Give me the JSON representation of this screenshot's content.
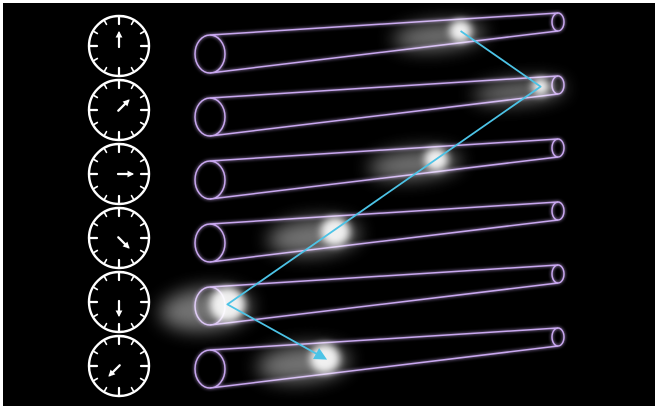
{
  "diagram": {
    "rows": [
      {
        "clock_angle_deg": 0,
        "blob_position": 0.72
      },
      {
        "clock_angle_deg": 45,
        "blob_position": 0.95
      },
      {
        "clock_angle_deg": 90,
        "blob_position": 0.65
      },
      {
        "clock_angle_deg": 135,
        "blob_position": 0.36
      },
      {
        "clock_angle_deg": 180,
        "blob_position": 0.05
      },
      {
        "clock_angle_deg": 225,
        "blob_position": 0.33
      }
    ],
    "path_points": [
      {
        "row": 0,
        "position": 0.72
      },
      {
        "row": 1,
        "position": 0.95
      },
      {
        "row": 4,
        "position": 0.05
      },
      {
        "row": 5,
        "position": 0.33
      }
    ],
    "colors": {
      "background": "#000000",
      "clock": "#ffffff",
      "tube": "#c9a8f0",
      "tube_glow": "#8a5fd0",
      "blob": "#ffffff",
      "path": "#4cc3e6"
    }
  }
}
